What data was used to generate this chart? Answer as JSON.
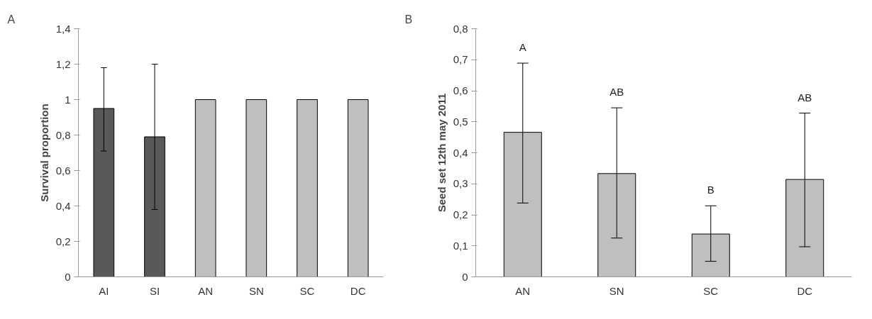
{
  "chart_data": [
    {
      "type": "bar",
      "ylabel": "Survival proportion",
      "categories": [
        "AI",
        "SI",
        "AN",
        "SN",
        "SC",
        "DC"
      ],
      "values": [
        0.95,
        0.79,
        1,
        1,
        1,
        1
      ],
      "colors": [
        "#595959",
        "#595959",
        "#bfbfbf",
        "#bfbfbf",
        "#bfbfbf",
        "#bfbfbf"
      ],
      "errors": [
        [
          0.71,
          1.18
        ],
        [
          0.38,
          1.2
        ],
        null,
        null,
        null,
        null
      ],
      "ylim": [
        0,
        1.4
      ],
      "yticks": [
        {
          "value": 0,
          "label": "0"
        },
        {
          "value": 0.2,
          "label": "0,2"
        },
        {
          "value": 0.4,
          "label": "0,4"
        },
        {
          "value": 0.6,
          "label": "0,6"
        },
        {
          "value": 0.8,
          "label": "0,8"
        },
        {
          "value": 1,
          "label": "1"
        },
        {
          "value": 1.2,
          "label": "1,2"
        },
        {
          "value": 1.4,
          "label": "1,4"
        }
      ],
      "grid": false,
      "title": "A"
    },
    {
      "type": "bar",
      "ylabel": "Seed set 12th may 2011",
      "categories": [
        "AN",
        "SN",
        "SC",
        "DC"
      ],
      "values": [
        0.466,
        0.333,
        0.138,
        0.314
      ],
      "color": "#bfbfbf",
      "errors": [
        [
          0.238,
          0.689
        ],
        [
          0.125,
          0.545
        ],
        [
          0.05,
          0.229
        ],
        [
          0.097,
          0.528
        ]
      ],
      "ylim": [
        0,
        0.8
      ],
      "yticks": [
        {
          "value": 0,
          "label": "0"
        },
        {
          "value": 0.1,
          "label": "0,1"
        },
        {
          "value": 0.2,
          "label": "0,2"
        },
        {
          "value": 0.3,
          "label": "0,3"
        },
        {
          "value": 0.4,
          "label": "0,4"
        },
        {
          "value": 0.5,
          "label": "0,5"
        },
        {
          "value": 0.6,
          "label": "0,6"
        },
        {
          "value": 0.7,
          "label": "0,7"
        },
        {
          "value": 0.8,
          "label": "0,8"
        }
      ],
      "grid": false,
      "title": "B",
      "annotations": [
        "A",
        "AB",
        "B",
        "AB"
      ]
    }
  ]
}
